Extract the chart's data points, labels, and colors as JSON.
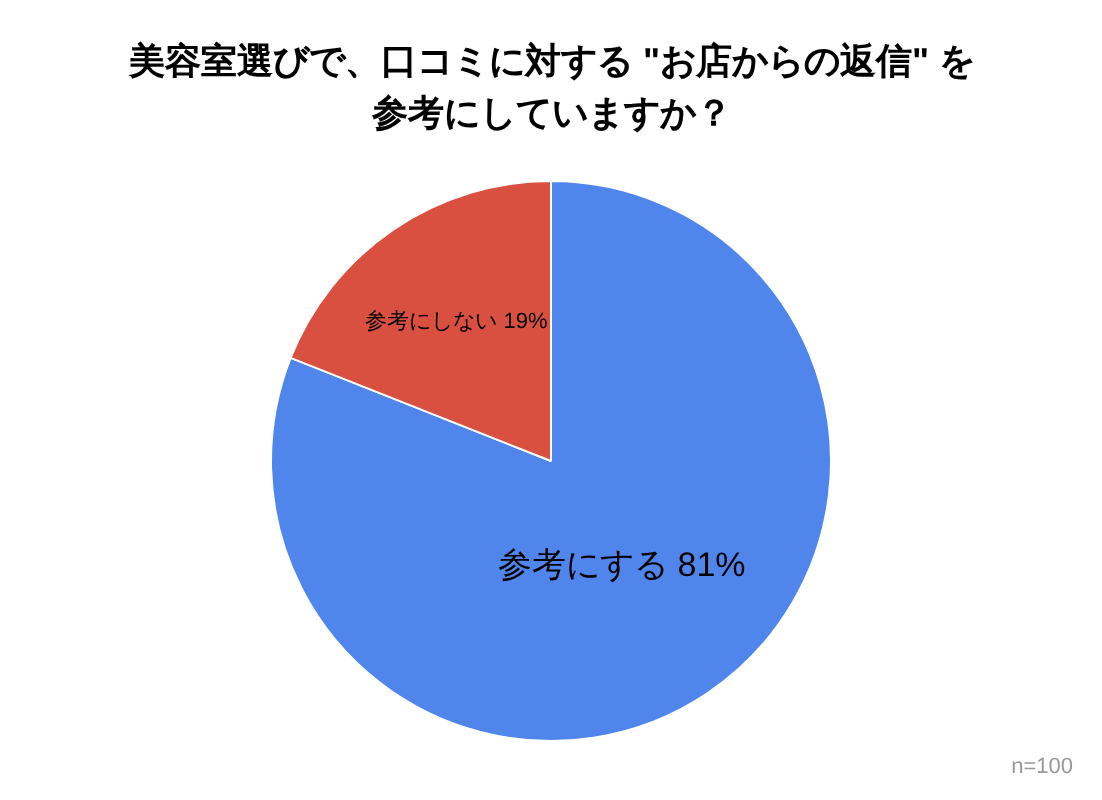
{
  "chart_data": {
    "type": "pie",
    "title": "美容室選びで、口コミに対する \"お店からの返信\" を参考にしていますか？",
    "categories": [
      "参考にする",
      "参考にしない"
    ],
    "values": [
      81,
      19
    ],
    "value_labels": [
      "81%",
      "19%"
    ],
    "colors": [
      "#5086ec",
      "#d95040"
    ],
    "annotations": [
      "n=100"
    ]
  }
}
